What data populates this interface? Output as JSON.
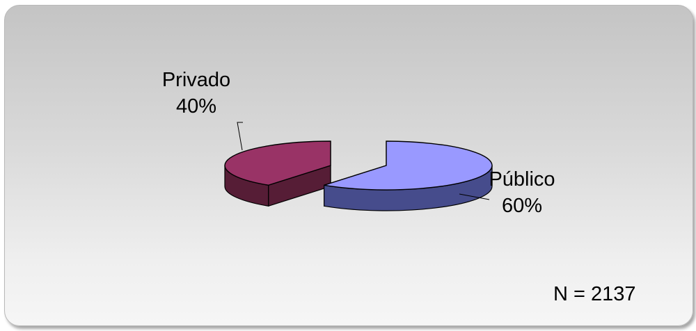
{
  "chart_data": {
    "type": "pie",
    "categories": [
      "Público",
      "Privado"
    ],
    "values": [
      60,
      40
    ],
    "value_labels": [
      "60%",
      "40%"
    ],
    "colors": {
      "Público": {
        "top": "#9999ff",
        "side": "#464c8c"
      },
      "Privado": {
        "top": "#993366",
        "side": "#561d36"
      }
    },
    "annotation": "N = 2137",
    "three_d": true,
    "legend": "none"
  }
}
